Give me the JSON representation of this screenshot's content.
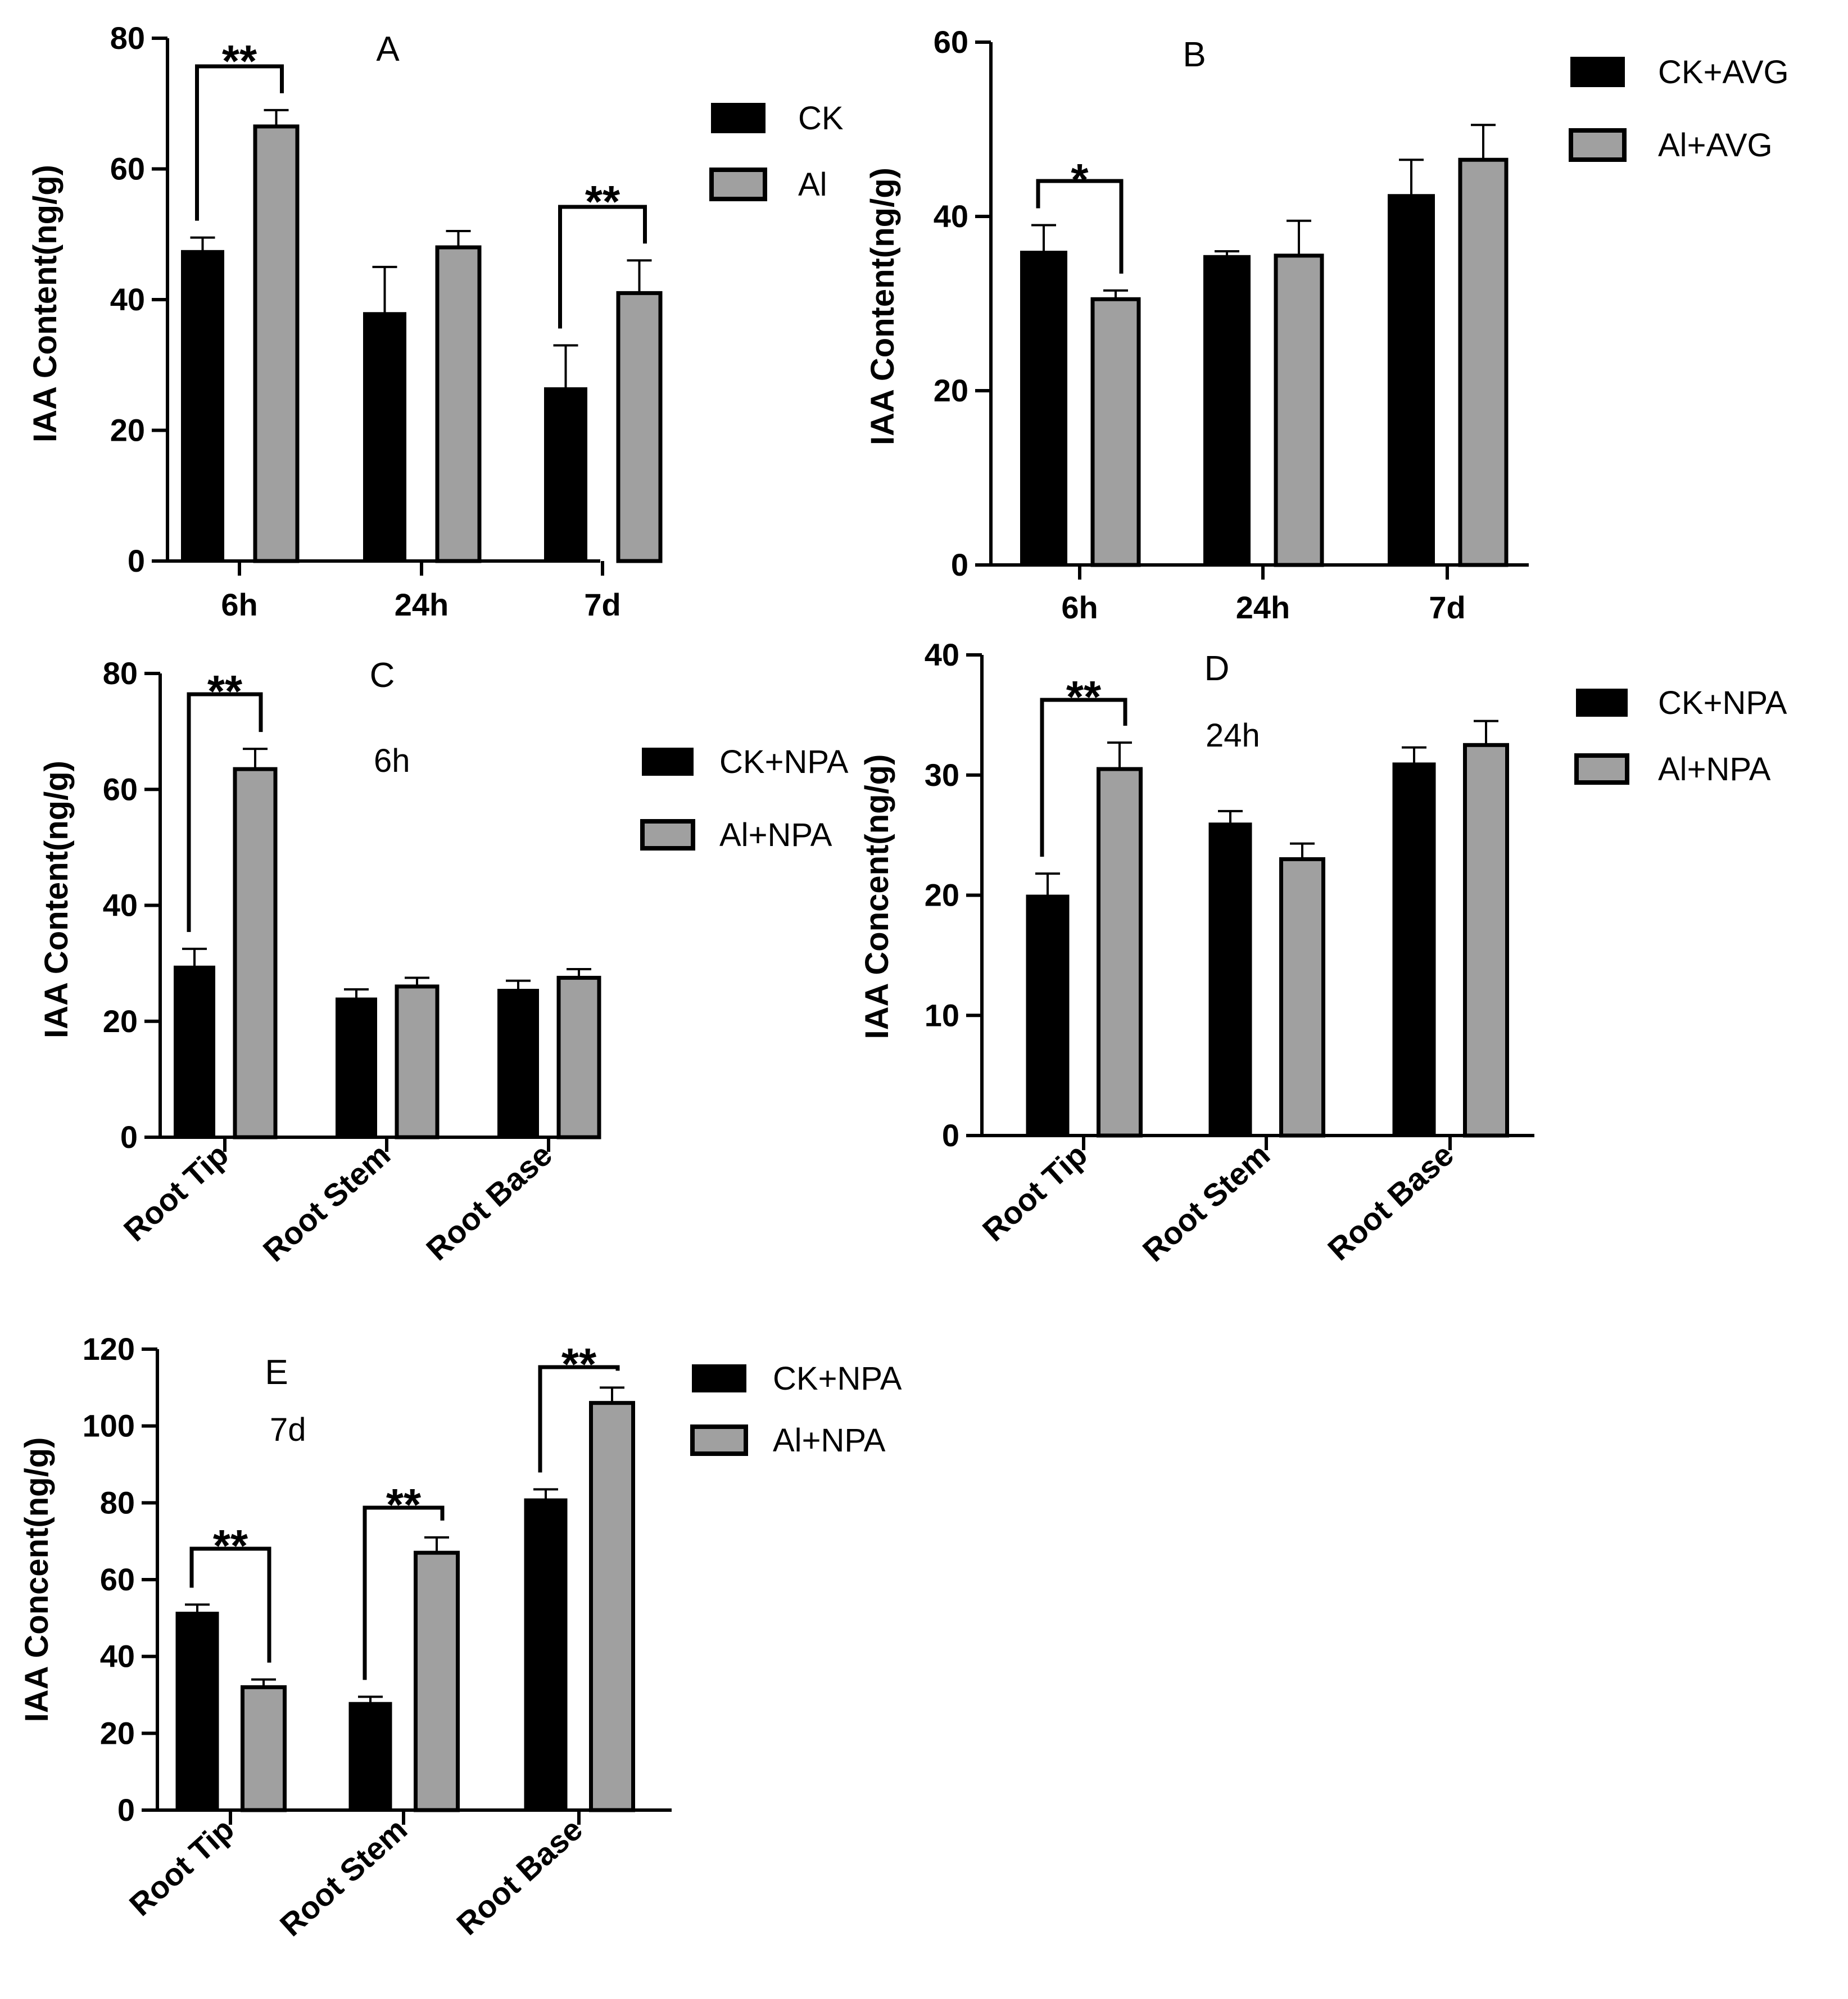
{
  "chart_data": [
    {
      "type": "bar",
      "panel": "A",
      "annotation": "",
      "ylabel": "IAA Content(ng/g)",
      "ylim": [
        0,
        80
      ],
      "yticks": [
        0,
        20,
        40,
        60,
        80
      ],
      "categories": [
        "6h",
        "24h",
        "7d"
      ],
      "rotated_categories": false,
      "series": [
        {
          "name": "CK",
          "color": "#000000",
          "values": [
            47.5,
            38,
            26.5
          ],
          "errors": [
            2,
            7,
            6.5
          ]
        },
        {
          "name": "Al",
          "color": "#a0a0a0",
          "values": [
            66.5,
            48,
            41
          ],
          "errors": [
            2.5,
            2.5,
            5
          ]
        }
      ],
      "significance": [
        {
          "category_index": 0,
          "label": "**"
        },
        {
          "category_index": 2,
          "label": "**"
        }
      ]
    },
    {
      "type": "bar",
      "panel": "B",
      "annotation": "",
      "ylabel": "IAA Content(ng/g)",
      "ylim": [
        0,
        60
      ],
      "yticks": [
        0,
        20,
        40,
        60
      ],
      "categories": [
        "6h",
        "24h",
        "7d"
      ],
      "rotated_categories": false,
      "series": [
        {
          "name": "CK+AVG",
          "color": "#000000",
          "values": [
            36,
            35.5,
            42.5
          ],
          "errors": [
            3,
            0.5,
            4
          ]
        },
        {
          "name": "Al+AVG",
          "color": "#a0a0a0",
          "values": [
            30.5,
            35.5,
            46.5
          ],
          "errors": [
            1,
            4,
            4
          ]
        }
      ],
      "significance": [
        {
          "category_index": 0,
          "label": "*"
        }
      ]
    },
    {
      "type": "bar",
      "panel": "C",
      "annotation": "6h",
      "ylabel": "IAA Content(ng/g)",
      "ylim": [
        0,
        80
      ],
      "yticks": [
        0,
        20,
        40,
        60,
        80
      ],
      "categories": [
        "Root Tip",
        "Root Stem",
        "Root Base"
      ],
      "rotated_categories": true,
      "series": [
        {
          "name": "CK+NPA",
          "color": "#000000",
          "values": [
            29.5,
            24,
            25.5
          ],
          "errors": [
            3,
            1.5,
            1.5
          ]
        },
        {
          "name": "Al+NPA",
          "color": "#a0a0a0",
          "values": [
            63.5,
            26,
            27.5
          ],
          "errors": [
            3.5,
            1.5,
            1.5
          ]
        }
      ],
      "significance": [
        {
          "category_index": 0,
          "label": "**"
        }
      ]
    },
    {
      "type": "bar",
      "panel": "D",
      "annotation": "24h",
      "ylabel": "IAA Concent(ng/g)",
      "ylim": [
        0,
        40
      ],
      "yticks": [
        0,
        10,
        20,
        30,
        40
      ],
      "categories": [
        "Root Tip",
        "Root Stem",
        "Root Base"
      ],
      "rotated_categories": true,
      "series": [
        {
          "name": "CK+NPA",
          "color": "#000000",
          "values": [
            20,
            26,
            31
          ],
          "errors": [
            1.8,
            1,
            1.3
          ]
        },
        {
          "name": "Al+NPA",
          "color": "#a0a0a0",
          "values": [
            30.5,
            23,
            32.5
          ],
          "errors": [
            2.2,
            1.3,
            2
          ]
        }
      ],
      "significance": [
        {
          "category_index": 0,
          "label": "**"
        }
      ]
    },
    {
      "type": "bar",
      "panel": "E",
      "annotation": "7d",
      "ylabel": "IAA Concent(ng/g)",
      "ylim": [
        0,
        120
      ],
      "yticks": [
        0,
        20,
        40,
        60,
        80,
        100,
        120
      ],
      "categories": [
        "Root Tip",
        "Root Stem",
        "Root Base"
      ],
      "rotated_categories": true,
      "series": [
        {
          "name": "CK+NPA",
          "color": "#000000",
          "values": [
            51.5,
            28,
            81
          ],
          "errors": [
            2,
            1.5,
            2.5
          ]
        },
        {
          "name": "Al+NPA",
          "color": "#a0a0a0",
          "values": [
            32,
            67,
            106
          ],
          "errors": [
            2,
            4,
            4
          ]
        }
      ],
      "significance": [
        {
          "category_index": 0,
          "label": "**"
        },
        {
          "category_index": 1,
          "label": "**"
        },
        {
          "category_index": 2,
          "label": "**"
        }
      ]
    }
  ]
}
